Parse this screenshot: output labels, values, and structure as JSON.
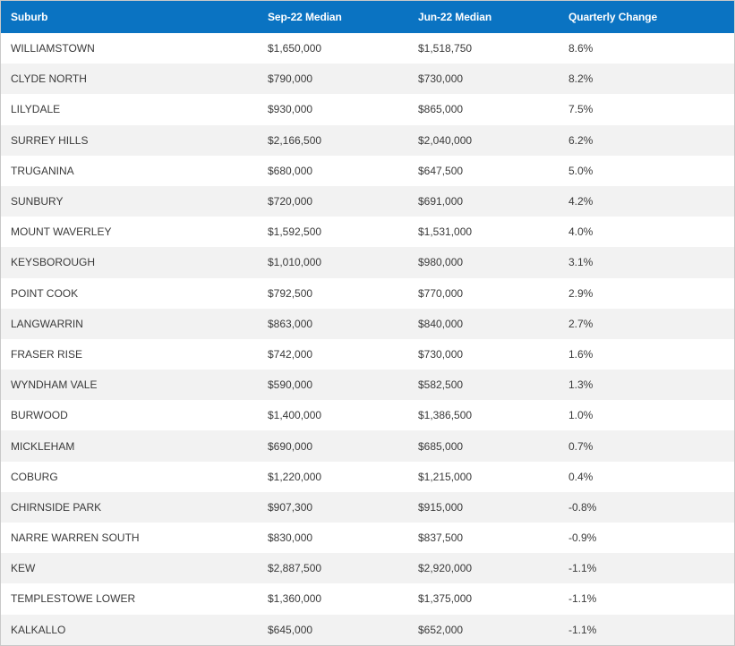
{
  "header": {
    "suburb": "Suburb",
    "sep": "Sep-22 Median",
    "jun": "Jun-22 Median",
    "change": "Quarterly Change"
  },
  "rows": [
    {
      "suburb": "WILLIAMSTOWN",
      "sep": "$1,650,000",
      "jun": "$1,518,750",
      "change": "8.6%"
    },
    {
      "suburb": "CLYDE NORTH",
      "sep": "$790,000",
      "jun": "$730,000",
      "change": "8.2%"
    },
    {
      "suburb": "LILYDALE",
      "sep": "$930,000",
      "jun": "$865,000",
      "change": "7.5%"
    },
    {
      "suburb": "SURREY HILLS",
      "sep": "$2,166,500",
      "jun": "$2,040,000",
      "change": "6.2%"
    },
    {
      "suburb": "TRUGANINA",
      "sep": "$680,000",
      "jun": "$647,500",
      "change": "5.0%"
    },
    {
      "suburb": "SUNBURY",
      "sep": "$720,000",
      "jun": "$691,000",
      "change": "4.2%"
    },
    {
      "suburb": "MOUNT WAVERLEY",
      "sep": "$1,592,500",
      "jun": "$1,531,000",
      "change": "4.0%"
    },
    {
      "suburb": "KEYSBOROUGH",
      "sep": "$1,010,000",
      "jun": "$980,000",
      "change": "3.1%"
    },
    {
      "suburb": "POINT COOK",
      "sep": "$792,500",
      "jun": "$770,000",
      "change": "2.9%"
    },
    {
      "suburb": "LANGWARRIN",
      "sep": "$863,000",
      "jun": "$840,000",
      "change": "2.7%"
    },
    {
      "suburb": "FRASER RISE",
      "sep": "$742,000",
      "jun": "$730,000",
      "change": "1.6%"
    },
    {
      "suburb": "WYNDHAM VALE",
      "sep": "$590,000",
      "jun": "$582,500",
      "change": "1.3%"
    },
    {
      "suburb": "BURWOOD",
      "sep": "$1,400,000",
      "jun": "$1,386,500",
      "change": "1.0%"
    },
    {
      "suburb": "MICKLEHAM",
      "sep": "$690,000",
      "jun": "$685,000",
      "change": "0.7%"
    },
    {
      "suburb": "COBURG",
      "sep": "$1,220,000",
      "jun": "$1,215,000",
      "change": "0.4%"
    },
    {
      "suburb": "CHIRNSIDE PARK",
      "sep": "$907,300",
      "jun": "$915,000",
      "change": "-0.8%"
    },
    {
      "suburb": "NARRE WARREN SOUTH",
      "sep": "$830,000",
      "jun": "$837,500",
      "change": "-0.9%"
    },
    {
      "suburb": "KEW",
      "sep": "$2,887,500",
      "jun": "$2,920,000",
      "change": "-1.1%"
    },
    {
      "suburb": "TEMPLESTOWE LOWER",
      "sep": "$1,360,000",
      "jun": "$1,375,000",
      "change": "-1.1%"
    },
    {
      "suburb": "KALKALLO",
      "sep": "$645,000",
      "jun": "$652,000",
      "change": "-1.1%"
    }
  ],
  "colors": {
    "header_bg": "#0a73c2",
    "header_text": "#ffffff",
    "stripe": "#f2f2f2",
    "text": "#3a3a3a"
  }
}
